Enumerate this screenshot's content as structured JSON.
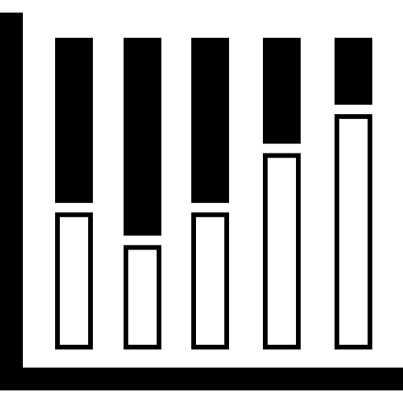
{
  "icon": {
    "name": "stacked-bar-chart-icon",
    "fill_color": "#000000",
    "background_color": "#ffffff"
  },
  "chart_data": {
    "type": "bar",
    "stacked": true,
    "categories": [
      "",
      "",
      "",
      "",
      ""
    ],
    "series": [
      {
        "style": "outlined",
        "values": [
          0.455,
          0.35,
          0.455,
          0.645,
          0.77
        ]
      },
      {
        "style": "filled",
        "values": [
          0.545,
          0.65,
          0.545,
          0.355,
          0.23
        ]
      }
    ],
    "ylim": [
      0,
      1
    ],
    "axes": {
      "x": true,
      "y": true
    },
    "grid": false,
    "legend": "none"
  }
}
